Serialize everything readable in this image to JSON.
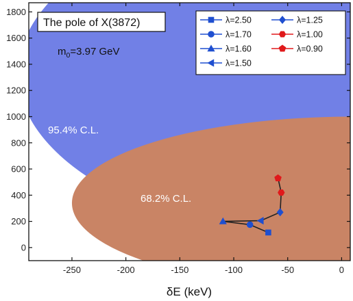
{
  "chart_data": {
    "type": "scatter",
    "title": "The pole of X(3872)",
    "annotation": {
      "base": "m",
      "sub": "0",
      "rest": "=3.97 GeV"
    },
    "xlabel": "δE (keV)",
    "ylabel": "",
    "xlim": [
      -290,
      8
    ],
    "ylim": [
      -100,
      1870
    ],
    "x_ticks": [
      -250,
      -200,
      -150,
      -100,
      -50,
      0
    ],
    "y_ticks": [
      0,
      200,
      400,
      600,
      800,
      1000,
      1200,
      1400,
      1600,
      1800
    ],
    "grid": false,
    "legend_position": "top-right",
    "regions": [
      {
        "label": "95.4% C.L.",
        "color": "#7180e6",
        "center": [
          30,
          1330
        ],
        "radius": [
          330,
          1330
        ]
      },
      {
        "label": "68.2% C.L.",
        "color": "#c98465",
        "center": [
          10,
          340
        ],
        "radius": [
          260,
          660
        ]
      }
    ],
    "series": [
      {
        "name": "λ=2.50",
        "marker": "square",
        "color": "#1f4fd0",
        "x": -68,
        "y": 115
      },
      {
        "name": "λ=1.70",
        "marker": "circle",
        "color": "#1f4fd0",
        "x": -85,
        "y": 175
      },
      {
        "name": "λ=1.60",
        "marker": "triangle-up",
        "color": "#1f4fd0",
        "x": -110,
        "y": 200
      },
      {
        "name": "λ=1.50",
        "marker": "triangle-left",
        "color": "#1f4fd0",
        "x": -75,
        "y": 205
      },
      {
        "name": "λ=1.25",
        "marker": "diamond",
        "color": "#1f4fd0",
        "x": -57,
        "y": 270
      },
      {
        "name": "λ=1.00",
        "marker": "hexagon",
        "color": "#e0191b",
        "x": -56,
        "y": 420
      },
      {
        "name": "λ=0.90",
        "marker": "pentagon",
        "color": "#e0191b",
        "x": -59,
        "y": 530
      }
    ],
    "path_order": [
      "λ=0.90",
      "λ=1.00",
      "λ=1.25",
      "λ=1.50",
      "λ=1.60",
      "λ=1.70",
      "λ=2.50"
    ],
    "path_color": "#222222"
  }
}
